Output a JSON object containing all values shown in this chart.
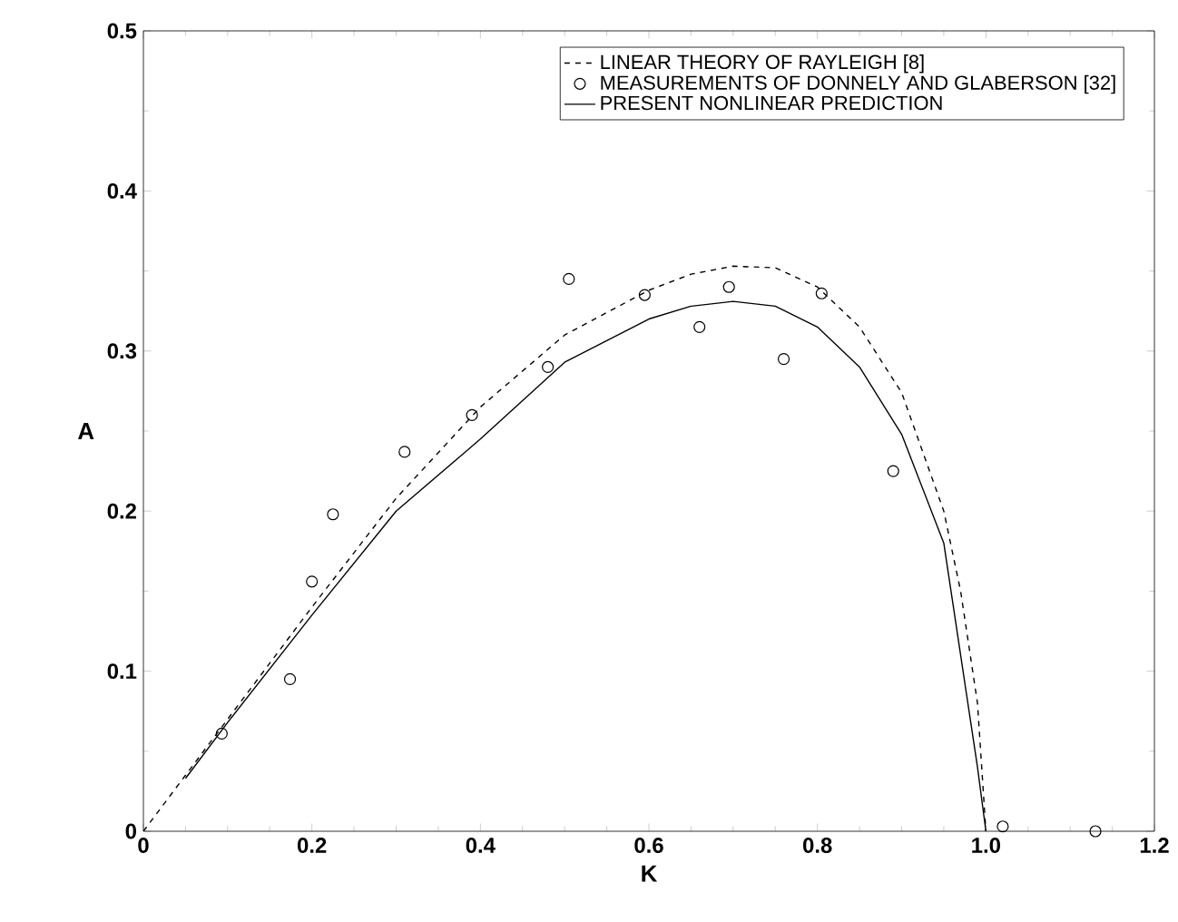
{
  "chart_data": {
    "type": "line",
    "xlabel": "K",
    "ylabel": "A",
    "xlim": [
      0,
      1.2
    ],
    "ylim": [
      0,
      0.5
    ],
    "xticks": [
      0,
      0.2,
      0.4,
      0.6,
      0.8,
      {
        "value": 1.0,
        "label": "1.0"
      },
      1.2
    ],
    "yticks": [
      0,
      0.1,
      0.2,
      0.3,
      0.4,
      0.5
    ],
    "legend": "top right",
    "grid": false,
    "series": [
      {
        "name": "LINEAR THEORY OF RAYLEIGH [8]",
        "line_style": "dashed",
        "color": "#000000",
        "x": [
          0,
          0.05,
          0.1,
          0.2,
          0.3,
          0.4,
          0.5,
          0.6,
          0.65,
          0.7,
          0.75,
          0.8,
          0.85,
          0.9,
          0.95,
          0.97,
          0.99,
          1.0
        ],
        "values": [
          0,
          0.035,
          0.07,
          0.14,
          0.208,
          0.265,
          0.31,
          0.338,
          0.348,
          0.353,
          0.352,
          0.34,
          0.315,
          0.274,
          0.2,
          0.15,
          0.08,
          0
        ]
      },
      {
        "name": "MEASUREMENTS OF DONNELY AND GLABERSON [32]",
        "type": "scatter",
        "marker": "circle",
        "color": "#000000",
        "x": [
          0.093,
          0.174,
          0.2,
          0.225,
          0.31,
          0.39,
          0.48,
          0.505,
          0.595,
          0.66,
          0.695,
          0.76,
          0.805,
          0.89,
          1.02,
          1.13
        ],
        "values": [
          0.061,
          0.095,
          0.156,
          0.198,
          0.237,
          0.26,
          0.29,
          0.345,
          0.335,
          0.315,
          0.34,
          0.295,
          0.336,
          0.225,
          0.003,
          0.0
        ]
      },
      {
        "name": "PRESENT NONLINEAR PREDICTION",
        "line_style": "solid",
        "color": "#000000",
        "x": [
          0.05,
          0.1,
          0.2,
          0.3,
          0.4,
          0.5,
          0.6,
          0.65,
          0.7,
          0.75,
          0.8,
          0.85,
          0.9,
          0.95,
          0.97,
          0.99,
          1.0
        ],
        "values": [
          0.033,
          0.068,
          0.135,
          0.2,
          0.245,
          0.293,
          0.32,
          0.328,
          0.331,
          0.328,
          0.315,
          0.29,
          0.248,
          0.18,
          0.11,
          0.04,
          0
        ]
      }
    ]
  }
}
